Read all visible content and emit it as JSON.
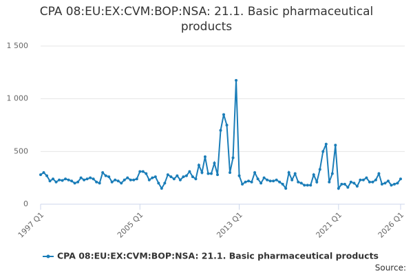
{
  "chart_data": {
    "type": "line",
    "title": "CPA 08:EU:EX:CVM:BOP:NSA: 21.1. Basic pharmaceutical products",
    "categories": [
      "1997 Q1",
      null,
      null,
      null,
      null,
      null,
      null,
      null,
      null,
      null,
      null,
      null,
      null,
      null,
      null,
      null,
      null,
      null,
      null,
      null,
      null,
      null,
      null,
      null,
      null,
      null,
      null,
      null,
      null,
      null,
      null,
      null,
      "2005 Q1",
      null,
      null,
      null,
      null,
      null,
      null,
      null,
      null,
      null,
      null,
      null,
      null,
      null,
      null,
      null,
      null,
      null,
      null,
      null,
      null,
      null,
      null,
      null,
      null,
      null,
      null,
      null,
      null,
      null,
      null,
      null,
      "2013 Q1",
      null,
      null,
      null,
      null,
      null,
      null,
      null,
      null,
      null,
      null,
      null,
      null,
      null,
      null,
      null,
      null,
      null,
      null,
      null,
      null,
      null,
      null,
      null,
      null,
      null,
      null,
      null,
      null,
      null,
      null,
      null,
      "2021 Q1",
      null,
      null,
      null,
      null,
      null,
      null,
      null,
      null,
      null,
      null,
      null,
      null,
      null,
      null,
      null,
      null,
      null,
      null,
      null,
      "2026 Q1"
    ],
    "series": [
      {
        "name": "CPA 08:EU:EX:CVM:BOP:NSA: 21.1. Basic pharmaceutical products",
        "color": "#1a7db8",
        "values": [
          280,
          300,
          270,
          220,
          240,
          210,
          230,
          225,
          240,
          230,
          220,
          200,
          210,
          250,
          230,
          240,
          250,
          240,
          210,
          200,
          300,
          270,
          260,
          210,
          230,
          220,
          200,
          230,
          250,
          230,
          230,
          240,
          310,
          310,
          290,
          230,
          250,
          260,
          200,
          150,
          200,
          280,
          260,
          240,
          270,
          230,
          260,
          270,
          310,
          260,
          240,
          370,
          300,
          450,
          290,
          290,
          390,
          280,
          700,
          850,
          750,
          300,
          440,
          1175,
          270,
          190,
          210,
          220,
          210,
          300,
          240,
          200,
          250,
          230,
          220,
          220,
          230,
          210,
          190,
          150,
          300,
          230,
          290,
          210,
          200,
          180,
          180,
          180,
          280,
          210,
          330,
          500,
          570,
          210,
          290,
          560,
          150,
          190,
          190,
          160,
          210,
          200,
          170,
          230,
          230,
          250,
          210,
          210,
          230,
          290,
          190,
          200,
          220,
          180,
          190,
          200,
          240
        ]
      }
    ],
    "ylim": [
      0,
      1500
    ],
    "yticks": [
      0,
      500,
      {
        "value": 1000,
        "label": "1 000"
      },
      {
        "value": 1500,
        "label": "1 500"
      }
    ],
    "grid": true,
    "source": "Source:"
  }
}
